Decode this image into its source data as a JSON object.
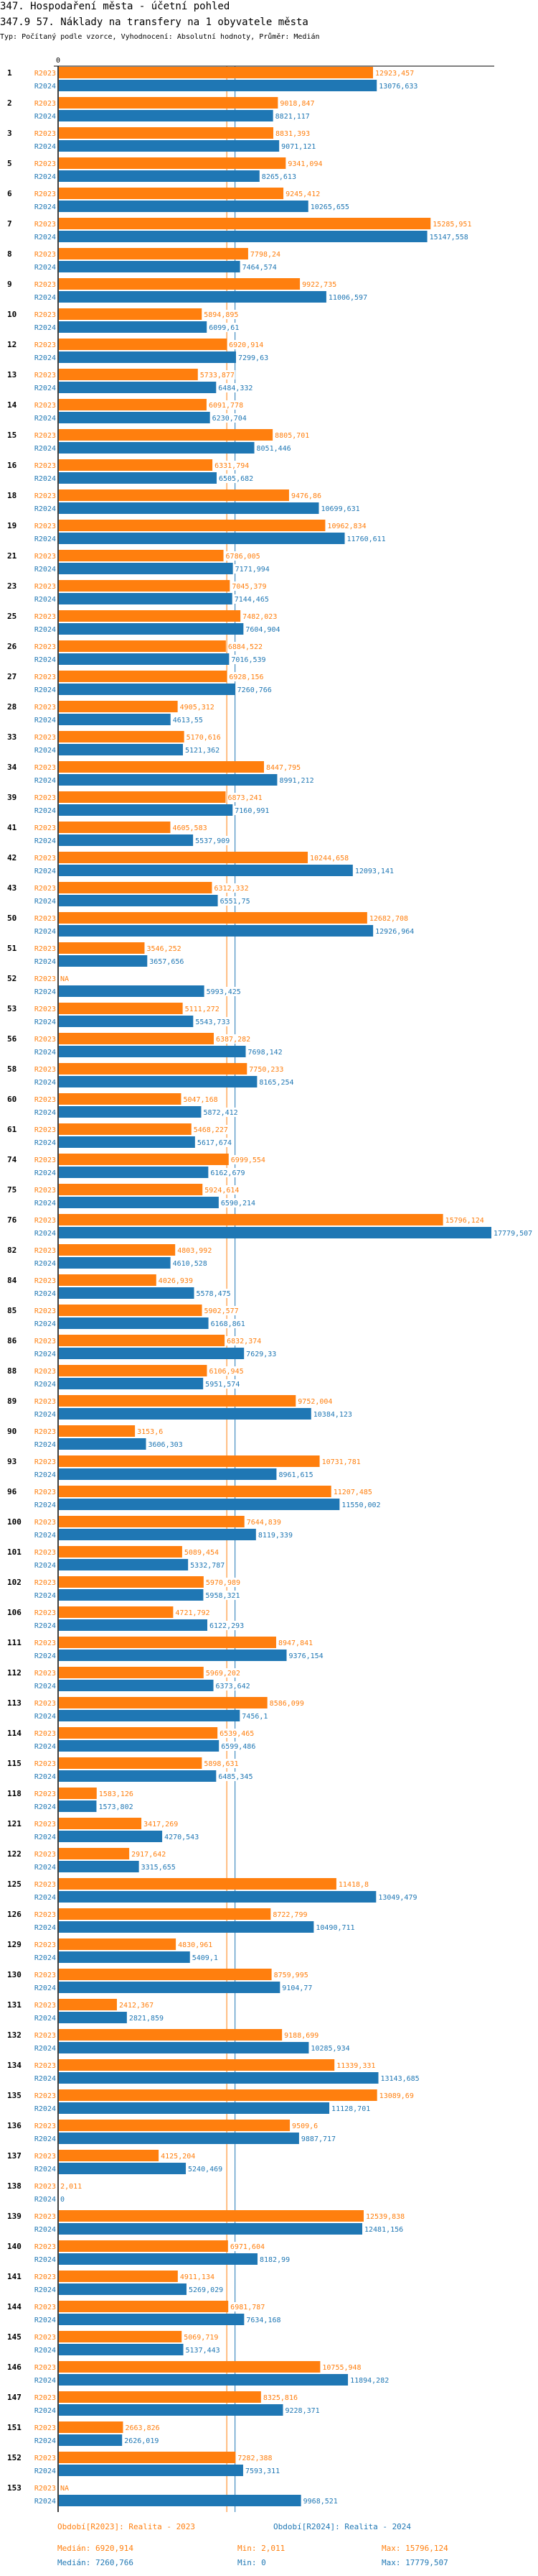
{
  "header": {
    "title": "347. Hospodaření města - účetní pohled",
    "subtitle": "347.9 57. Náklady na transfery na 1 obyvatele města",
    "type_line": "Typ: Počítaný podle vzorce, Vyhodnocení: Absolutní hodnoty, Průměr: Medián"
  },
  "chart_data": {
    "type": "bar",
    "orientation": "horizontal",
    "axis_zero_label": "0",
    "xlim": [
      0,
      17779.507
    ],
    "colors": {
      "R2023": "#ff7f0e",
      "R2024": "#1f77b4"
    },
    "series_labels": [
      "R2023",
      "R2024"
    ],
    "median_lines": {
      "R2023": 6920.914,
      "R2024": 7260.766
    },
    "rows": [
      [
        "1",
        "12923,457",
        "13076,633"
      ],
      [
        "2",
        "9018,847",
        "8821,117"
      ],
      [
        "3",
        "8831,393",
        "9071,121"
      ],
      [
        "5",
        "9341,094",
        "8265,613"
      ],
      [
        "6",
        "9245,412",
        "10265,655"
      ],
      [
        "7",
        "15285,951",
        "15147,558"
      ],
      [
        "8",
        "7798,24",
        "7464,574"
      ],
      [
        "9",
        "9922,735",
        "11006,597"
      ],
      [
        "10",
        "5894,895",
        "6099,61"
      ],
      [
        "12",
        "6920,914",
        "7299,63"
      ],
      [
        "13",
        "5733,877",
        "6484,332"
      ],
      [
        "14",
        "6091,778",
        "6230,704"
      ],
      [
        "15",
        "8805,701",
        "8051,446"
      ],
      [
        "16",
        "6331,794",
        "6505,682"
      ],
      [
        "18",
        "9476,86",
        "10699,631"
      ],
      [
        "19",
        "10962,834",
        "11760,611"
      ],
      [
        "21",
        "6786,005",
        "7171,994"
      ],
      [
        "23",
        "7045,379",
        "7144,465"
      ],
      [
        "25",
        "7482,023",
        "7604,904"
      ],
      [
        "26",
        "6884,522",
        "7016,539"
      ],
      [
        "27",
        "6928,156",
        "7260,766"
      ],
      [
        "28",
        "4905,312",
        "4613,55"
      ],
      [
        "33",
        "5170,616",
        "5121,362"
      ],
      [
        "34",
        "8447,795",
        "8991,212"
      ],
      [
        "39",
        "6873,241",
        "7160,991"
      ],
      [
        "41",
        "4605,583",
        "5537,909"
      ],
      [
        "42",
        "10244,658",
        "12093,141"
      ],
      [
        "43",
        "6312,332",
        "6551,75"
      ],
      [
        "50",
        "12682,708",
        "12926,964"
      ],
      [
        "51",
        "3546,252",
        "3657,656"
      ],
      [
        "52",
        "NA",
        "5993,425"
      ],
      [
        "53",
        "5111,272",
        "5543,733"
      ],
      [
        "56",
        "6387,282",
        "7698,142"
      ],
      [
        "58",
        "7750,233",
        "8165,254"
      ],
      [
        "60",
        "5047,168",
        "5872,412"
      ],
      [
        "61",
        "5468,227",
        "5617,674"
      ],
      [
        "74",
        "6999,554",
        "6162,679"
      ],
      [
        "75",
        "5924,614",
        "6590,214"
      ],
      [
        "76",
        "15796,124",
        "17779,507"
      ],
      [
        "82",
        "4803,992",
        "4610,528"
      ],
      [
        "84",
        "4026,939",
        "5578,475"
      ],
      [
        "85",
        "5902,577",
        "6168,861"
      ],
      [
        "86",
        "6832,374",
        "7629,33"
      ],
      [
        "88",
        "6106,945",
        "5951,574"
      ],
      [
        "89",
        "9752,004",
        "10384,123"
      ],
      [
        "90",
        "3153,6",
        "3606,303"
      ],
      [
        "93",
        "10731,781",
        "8961,615"
      ],
      [
        "96",
        "11207,485",
        "11550,002"
      ],
      [
        "100",
        "7644,839",
        "8119,339"
      ],
      [
        "101",
        "5089,454",
        "5332,787"
      ],
      [
        "102",
        "5970,989",
        "5958,321"
      ],
      [
        "106",
        "4721,792",
        "6122,293"
      ],
      [
        "111",
        "8947,841",
        "9376,154"
      ],
      [
        "112",
        "5969,202",
        "6373,642"
      ],
      [
        "113",
        "8586,099",
        "7456,1"
      ],
      [
        "114",
        "6539,465",
        "6599,486"
      ],
      [
        "115",
        "5898,631",
        "6485,345"
      ],
      [
        "118",
        "1583,126",
        "1573,802"
      ],
      [
        "121",
        "3417,269",
        "4270,543"
      ],
      [
        "122",
        "2917,642",
        "3315,655"
      ],
      [
        "125",
        "11418,8",
        "13049,479"
      ],
      [
        "126",
        "8722,799",
        "10490,711"
      ],
      [
        "129",
        "4830,961",
        "5409,1"
      ],
      [
        "130",
        "8759,995",
        "9104,77"
      ],
      [
        "131",
        "2412,367",
        "2821,859"
      ],
      [
        "132",
        "9188,699",
        "10285,934"
      ],
      [
        "134",
        "11339,331",
        "13143,685"
      ],
      [
        "135",
        "13089,69",
        "11128,701"
      ],
      [
        "136",
        "9509,6",
        "9887,717"
      ],
      [
        "137",
        "4125,204",
        "5240,469"
      ],
      [
        "138",
        "2,011",
        "0"
      ],
      [
        "139",
        "12539,838",
        "12481,156"
      ],
      [
        "140",
        "6971,604",
        "8182,99"
      ],
      [
        "141",
        "4911,134",
        "5269,029"
      ],
      [
        "144",
        "6981,787",
        "7634,168"
      ],
      [
        "145",
        "5069,719",
        "5137,443"
      ],
      [
        "146",
        "10755,948",
        "11894,282"
      ],
      [
        "147",
        "8325,816",
        "9228,371"
      ],
      [
        "151",
        "2663,826",
        "2626,019"
      ],
      [
        "152",
        "7282,388",
        "7593,311"
      ],
      [
        "153",
        "NA",
        "9968,521"
      ]
    ]
  },
  "legend": {
    "r2023": "Období[R2023]: Realita - 2023",
    "r2024": "Období[R2024]: Realita - 2024",
    "r2023_median": "Medián: 6920,914",
    "r2023_min": "Min: 2,011",
    "r2023_max": "Max: 15796,124",
    "r2024_median": "Medián: 7260,766",
    "r2024_min": "Min: 0",
    "r2024_max": "Max: 17779,507"
  }
}
